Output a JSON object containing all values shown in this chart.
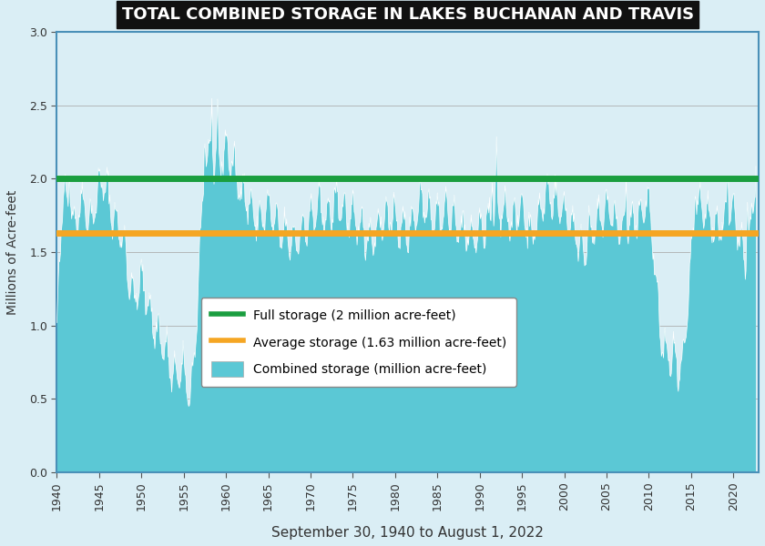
{
  "title": "TOTAL COMBINED STORAGE IN LAKES BUCHANAN AND TRAVIS",
  "xlabel": "September 30, 1940 to August 1, 2022",
  "ylabel": "Millions of Acre-feet",
  "full_storage": 2.0,
  "avg_storage": 1.63,
  "full_storage_label": "Full storage (2 million acre-feet)",
  "avg_storage_label": "Average storage (1.63 million acre-feet)",
  "combined_storage_label": "Combined storage (million acre-feet)",
  "ylim": [
    0.0,
    3.0
  ],
  "xlim": [
    1940,
    2023
  ],
  "xticks": [
    1940,
    1945,
    1950,
    1955,
    1960,
    1965,
    1970,
    1975,
    1980,
    1985,
    1990,
    1995,
    2000,
    2005,
    2010,
    2015,
    2020
  ],
  "yticks": [
    0.0,
    0.5,
    1.0,
    1.5,
    2.0,
    2.5,
    3.0
  ],
  "bg_color": "#daeef5",
  "fill_color": "#5bc8d5",
  "fill_edge_color": "#ffffff",
  "full_line_color": "#1a9e3f",
  "avg_line_color": "#f5a623",
  "title_bg_color": "#111111",
  "title_text_color": "#ffffff",
  "grid_color": "#aaaaaa",
  "border_color": "#4a90b8"
}
